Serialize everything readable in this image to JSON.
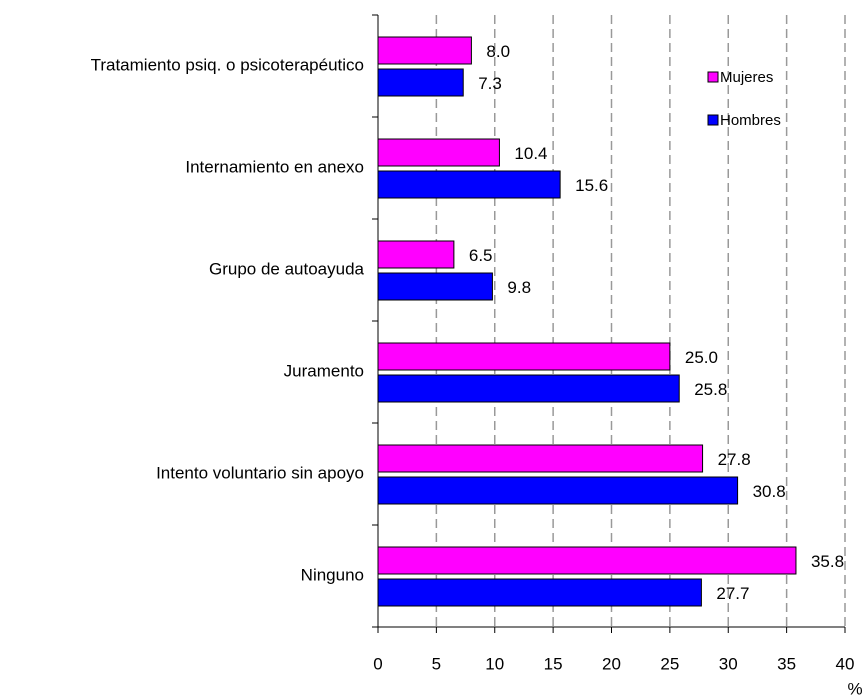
{
  "chart_data": {
    "type": "barh",
    "categories": [
      "Tratamiento psiq. o psicoterapéutico",
      "Internamiento en anexo",
      "Grupo de autoayuda",
      "Juramento",
      "Intento voluntario sin apoyo",
      "Ninguno"
    ],
    "series": [
      {
        "name": "Mujeres",
        "color": "#ff00ff",
        "values": [
          8.0,
          10.4,
          6.5,
          25.0,
          27.8,
          35.8
        ],
        "value_labels": [
          "8.0",
          "10.4",
          "6.5",
          "25.0",
          "27.8",
          "35.8"
        ]
      },
      {
        "name": "Hombres",
        "color": "#0000ff",
        "values": [
          7.3,
          15.6,
          9.8,
          25.8,
          30.8,
          27.7
        ],
        "value_labels": [
          "7.3",
          "15.6",
          "9.8",
          "25.8",
          "30.8",
          "27.7"
        ]
      }
    ],
    "xlim": [
      0,
      40
    ],
    "xticks": [
      0,
      5,
      10,
      15,
      20,
      25,
      30,
      35,
      40
    ],
    "x_label": "%",
    "grid": true,
    "legend": "top-right"
  }
}
